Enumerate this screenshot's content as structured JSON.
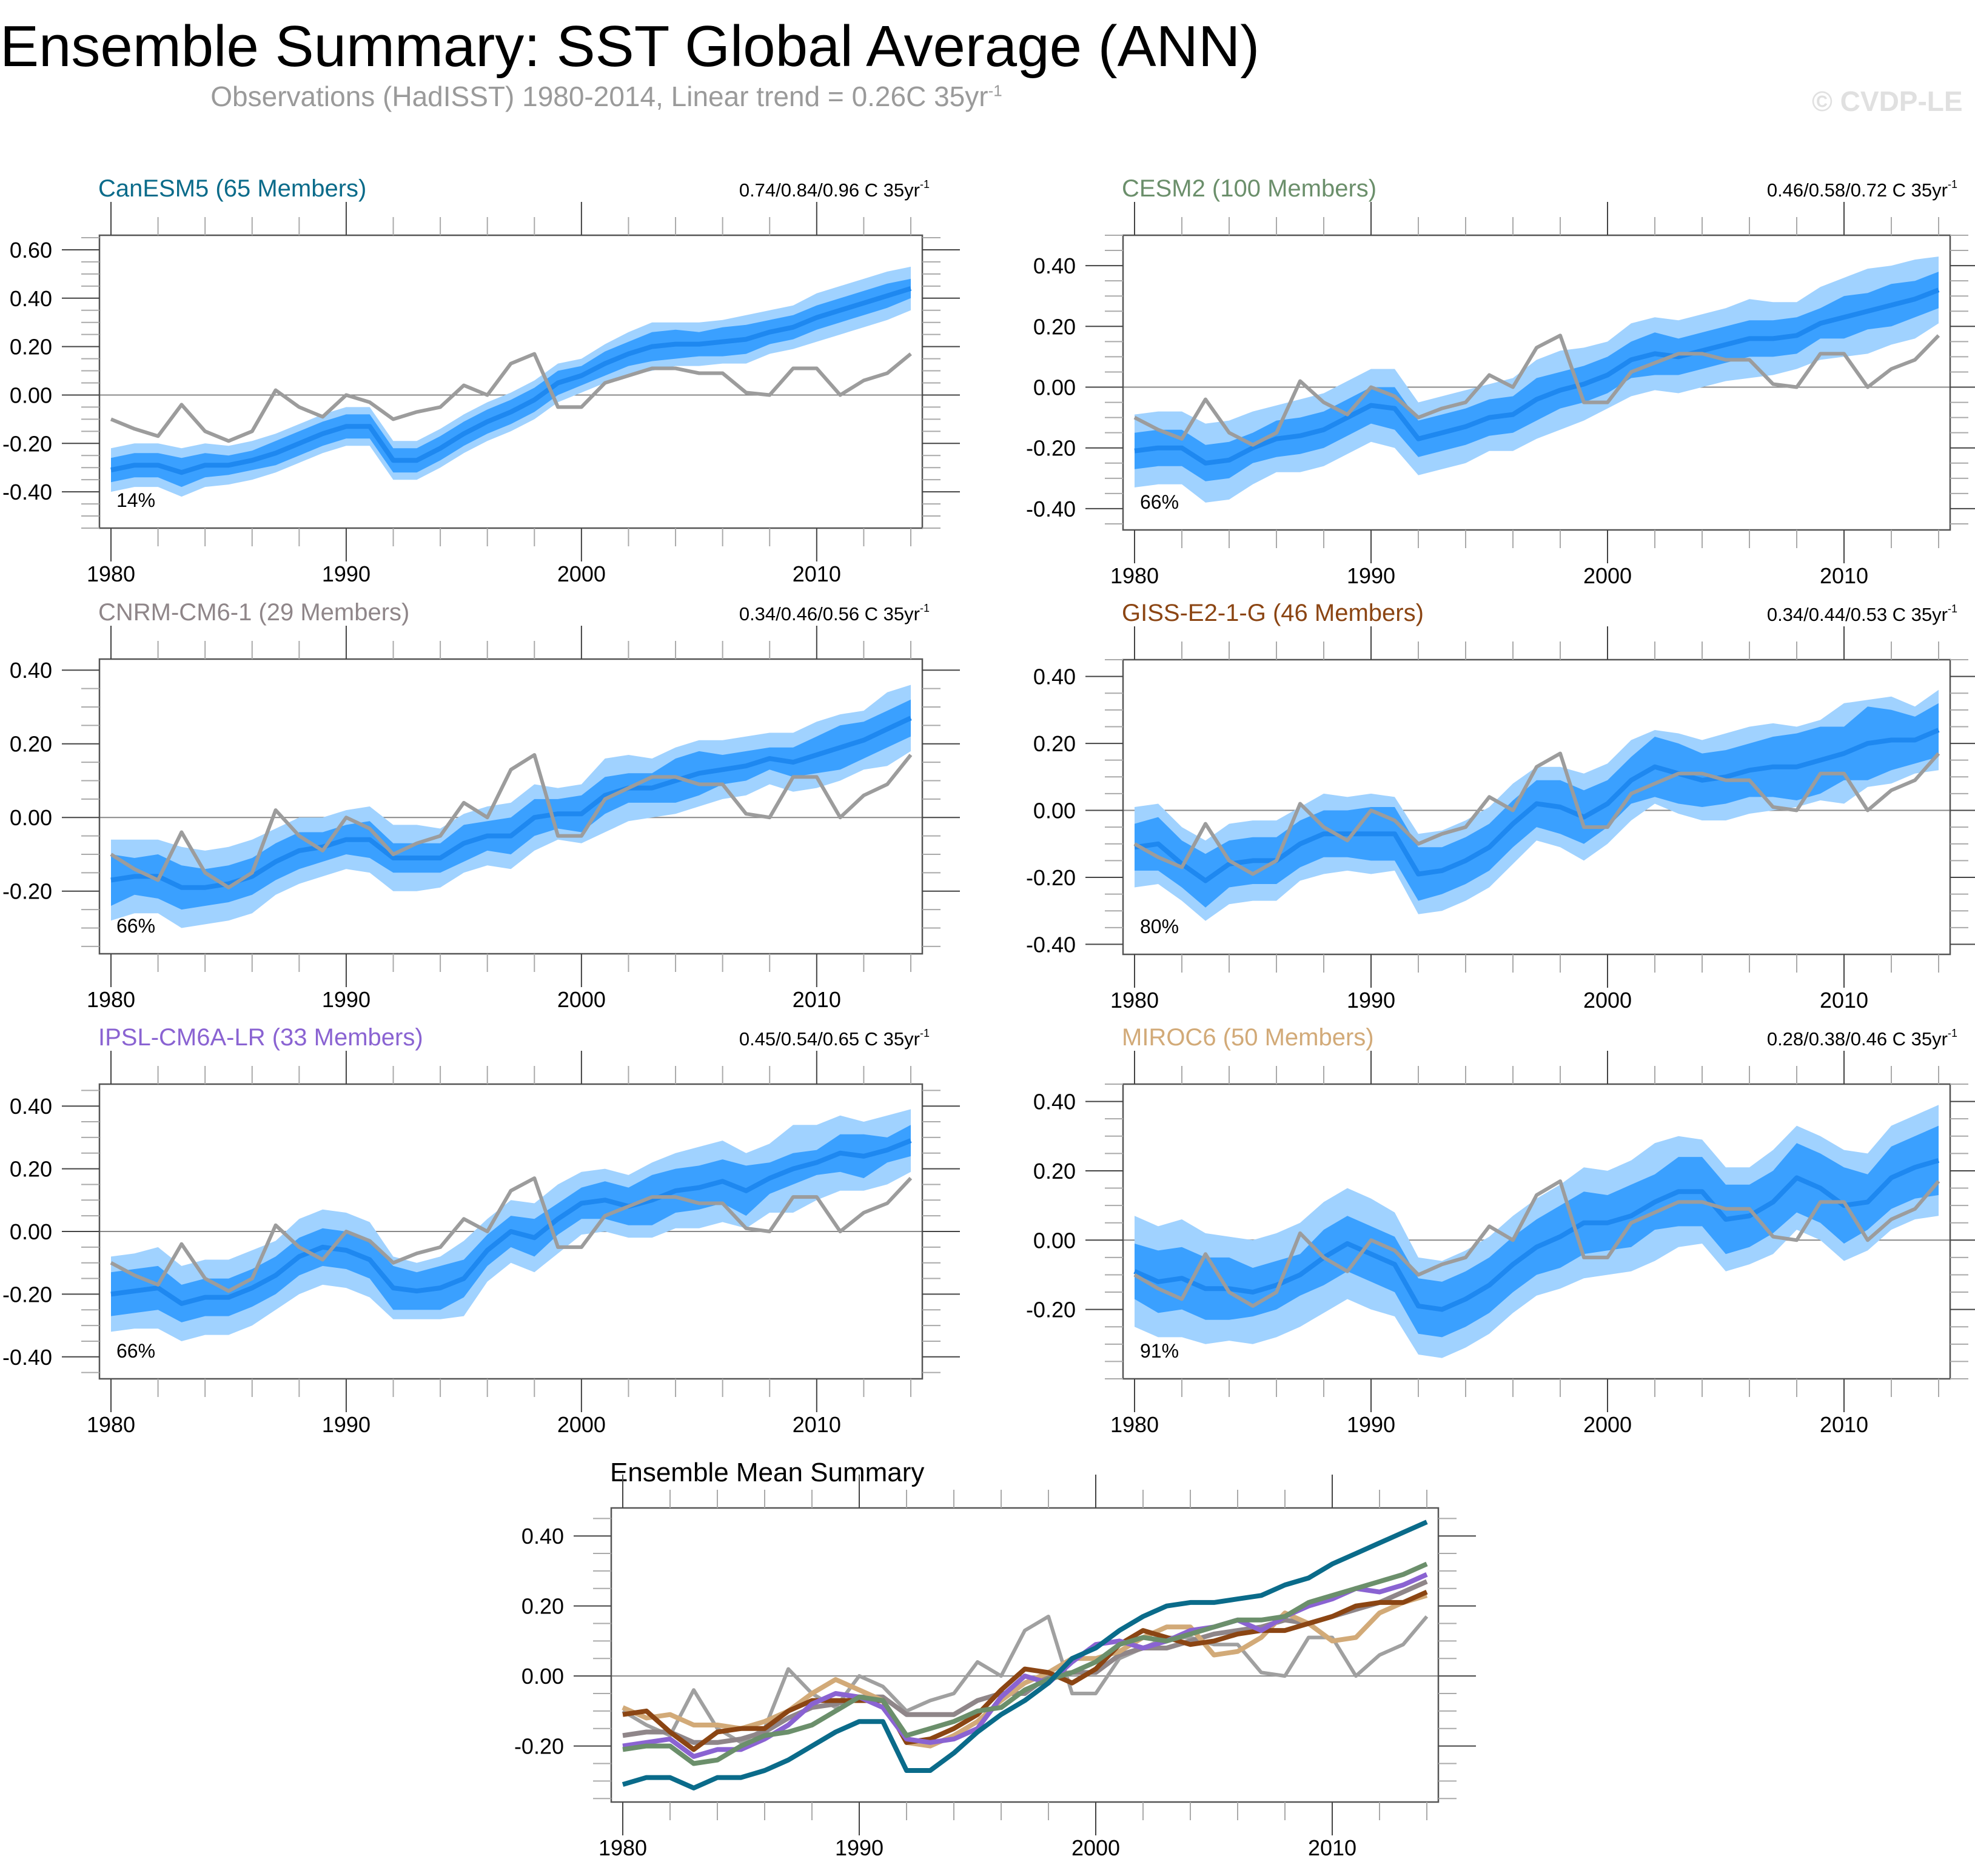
{
  "header": {
    "title": "Ensemble Summary: SST Global Average (ANN)",
    "subtitle": "Observations (HadISST) 1980-2014, Linear trend = 0.26C 35yr",
    "subtitle_superscript": "-1",
    "watermark": "© CVDP-LE"
  },
  "colors": {
    "band_outer": "#a0d2ff",
    "band_inner": "#3aa0ff",
    "ensemble_mean": "#1e88f0",
    "observations": "#9c9c9c",
    "zero_line": "#888888",
    "axis": "#555555"
  },
  "chart_data": [
    {
      "type": "area",
      "id": "canesm5",
      "title": "CanESM5 (65 Members)",
      "title_color": "#0a6b8a",
      "trend_label": "0.74/0.84/0.96 C 35yr",
      "trend_superscript": "-1",
      "percent_label": "14%",
      "ylim": [
        -0.55,
        0.66
      ],
      "yticks": [
        0.6,
        0.4,
        0.2,
        0.0,
        -0.2,
        -0.4
      ],
      "ytick_labels": [
        "0.60",
        "0.40",
        "0.20",
        "0.00",
        "-0.20",
        "-0.40"
      ],
      "xticks": [
        1980,
        1990,
        2000,
        2010
      ],
      "xtick_labels": [
        "1980",
        "1990",
        "2000",
        "2010"
      ],
      "mean": [
        -0.31,
        -0.29,
        -0.29,
        -0.32,
        -0.29,
        -0.29,
        -0.27,
        -0.24,
        -0.2,
        -0.16,
        -0.13,
        -0.13,
        -0.27,
        -0.27,
        -0.22,
        -0.16,
        -0.11,
        -0.07,
        -0.02,
        0.05,
        0.08,
        0.13,
        0.17,
        0.2,
        0.21,
        0.21,
        0.22,
        0.23,
        0.26,
        0.28,
        0.32,
        0.35,
        0.38,
        0.41,
        0.44
      ],
      "inner_halfwidth": [
        0.05,
        0.05,
        0.05,
        0.06,
        0.05,
        0.04,
        0.04,
        0.05,
        0.05,
        0.05,
        0.05,
        0.05,
        0.05,
        0.05,
        0.05,
        0.05,
        0.05,
        0.05,
        0.05,
        0.05,
        0.04,
        0.05,
        0.05,
        0.06,
        0.06,
        0.05,
        0.06,
        0.06,
        0.05,
        0.05,
        0.05,
        0.05,
        0.05,
        0.05,
        0.04
      ],
      "outer_halfwidth": [
        0.09,
        0.09,
        0.09,
        0.1,
        0.09,
        0.08,
        0.08,
        0.08,
        0.08,
        0.08,
        0.08,
        0.08,
        0.08,
        0.08,
        0.08,
        0.08,
        0.08,
        0.08,
        0.08,
        0.08,
        0.07,
        0.08,
        0.09,
        0.1,
        0.09,
        0.09,
        0.09,
        0.1,
        0.09,
        0.09,
        0.1,
        0.1,
        0.1,
        0.1,
        0.09
      ]
    },
    {
      "type": "area",
      "id": "cesm2",
      "title": "CESM2 (100 Members)",
      "title_color": "#6b8f6b",
      "trend_label": "0.46/0.58/0.72 C 35yr",
      "trend_superscript": "-1",
      "percent_label": "66%",
      "ylim": [
        -0.47,
        0.5
      ],
      "yticks": [
        0.4,
        0.2,
        0.0,
        -0.2,
        -0.4
      ],
      "ytick_labels": [
        "0.40",
        "0.20",
        "0.00",
        "-0.20",
        "-0.40"
      ],
      "xticks": [
        1980,
        1990,
        2000,
        2010
      ],
      "xtick_labels": [
        "1980",
        "1990",
        "2000",
        "2010"
      ],
      "mean": [
        -0.21,
        -0.2,
        -0.2,
        -0.25,
        -0.24,
        -0.2,
        -0.17,
        -0.16,
        -0.14,
        -0.1,
        -0.06,
        -0.07,
        -0.17,
        -0.15,
        -0.13,
        -0.1,
        -0.09,
        -0.04,
        -0.01,
        0.01,
        0.04,
        0.09,
        0.11,
        0.1,
        0.12,
        0.14,
        0.16,
        0.16,
        0.17,
        0.21,
        0.23,
        0.25,
        0.27,
        0.29,
        0.32
      ],
      "inner_halfwidth": [
        0.06,
        0.06,
        0.06,
        0.06,
        0.06,
        0.05,
        0.06,
        0.06,
        0.06,
        0.06,
        0.06,
        0.07,
        0.06,
        0.06,
        0.06,
        0.06,
        0.06,
        0.07,
        0.06,
        0.06,
        0.06,
        0.06,
        0.07,
        0.06,
        0.06,
        0.06,
        0.06,
        0.06,
        0.06,
        0.05,
        0.07,
        0.06,
        0.07,
        0.06,
        0.06
      ],
      "outer_halfwidth": [
        0.12,
        0.12,
        0.12,
        0.13,
        0.13,
        0.12,
        0.11,
        0.12,
        0.12,
        0.12,
        0.12,
        0.13,
        0.12,
        0.12,
        0.12,
        0.11,
        0.12,
        0.13,
        0.13,
        0.12,
        0.11,
        0.12,
        0.12,
        0.12,
        0.12,
        0.12,
        0.13,
        0.12,
        0.11,
        0.12,
        0.13,
        0.14,
        0.13,
        0.13,
        0.11
      ]
    },
    {
      "type": "area",
      "id": "cnrm-cm6-1",
      "title": "CNRM-CM6-1 (29 Members)",
      "title_color": "#8f8689",
      "trend_label": "0.34/0.46/0.56 C 35yr",
      "trend_superscript": "-1",
      "percent_label": "66%",
      "ylim": [
        -0.37,
        0.43
      ],
      "yticks": [
        0.4,
        0.2,
        0.0,
        -0.2
      ],
      "ytick_labels": [
        "0.40",
        "0.20",
        "0.00",
        "-0.20"
      ],
      "xticks": [
        1980,
        1990,
        2000,
        2010
      ],
      "xtick_labels": [
        "1980",
        "1990",
        "2000",
        "2010"
      ],
      "mean": [
        -0.17,
        -0.16,
        -0.16,
        -0.19,
        -0.19,
        -0.18,
        -0.16,
        -0.12,
        -0.09,
        -0.08,
        -0.06,
        -0.06,
        -0.11,
        -0.11,
        -0.11,
        -0.07,
        -0.05,
        -0.05,
        0.0,
        0.01,
        0.01,
        0.06,
        0.08,
        0.08,
        0.1,
        0.12,
        0.13,
        0.14,
        0.16,
        0.15,
        0.17,
        0.19,
        0.21,
        0.24,
        0.27
      ],
      "inner_halfwidth": [
        0.07,
        0.05,
        0.06,
        0.06,
        0.05,
        0.05,
        0.05,
        0.05,
        0.05,
        0.04,
        0.04,
        0.05,
        0.04,
        0.04,
        0.04,
        0.05,
        0.04,
        0.05,
        0.05,
        0.04,
        0.05,
        0.05,
        0.04,
        0.04,
        0.06,
        0.06,
        0.04,
        0.04,
        0.03,
        0.04,
        0.05,
        0.06,
        0.05,
        0.05,
        0.05
      ],
      "outer_halfwidth": [
        0.11,
        0.1,
        0.1,
        0.11,
        0.1,
        0.1,
        0.1,
        0.09,
        0.09,
        0.08,
        0.08,
        0.09,
        0.09,
        0.09,
        0.08,
        0.08,
        0.08,
        0.09,
        0.09,
        0.07,
        0.08,
        0.1,
        0.09,
        0.08,
        0.09,
        0.09,
        0.08,
        0.08,
        0.07,
        0.08,
        0.09,
        0.09,
        0.08,
        0.1,
        0.09
      ]
    },
    {
      "type": "area",
      "id": "giss-e2-1-g",
      "title": "GISS-E2-1-G (46 Members)",
      "title_color": "#8b4513",
      "trend_label": "0.34/0.44/0.53 C 35yr",
      "trend_superscript": "-1",
      "percent_label": "80%",
      "ylim": [
        -0.43,
        0.45
      ],
      "yticks": [
        0.4,
        0.2,
        0.0,
        -0.2,
        -0.4
      ],
      "ytick_labels": [
        "0.40",
        "0.20",
        "0.00",
        "-0.20",
        "-0.40"
      ],
      "xticks": [
        1980,
        1990,
        2000,
        2010
      ],
      "xtick_labels": [
        "1980",
        "1990",
        "2000",
        "2010"
      ],
      "mean": [
        -0.11,
        -0.1,
        -0.16,
        -0.21,
        -0.16,
        -0.15,
        -0.15,
        -0.1,
        -0.07,
        -0.07,
        -0.07,
        -0.07,
        -0.19,
        -0.18,
        -0.15,
        -0.11,
        -0.04,
        0.02,
        0.01,
        -0.02,
        0.02,
        0.09,
        0.13,
        0.11,
        0.09,
        0.1,
        0.12,
        0.13,
        0.13,
        0.15,
        0.17,
        0.2,
        0.21,
        0.21,
        0.24
      ],
      "inner_halfwidth": [
        0.07,
        0.08,
        0.07,
        0.08,
        0.07,
        0.07,
        0.07,
        0.07,
        0.07,
        0.07,
        0.08,
        0.08,
        0.08,
        0.07,
        0.07,
        0.07,
        0.07,
        0.07,
        0.08,
        0.08,
        0.07,
        0.07,
        0.09,
        0.09,
        0.08,
        0.08,
        0.08,
        0.09,
        0.1,
        0.1,
        0.08,
        0.11,
        0.09,
        0.07,
        0.08
      ],
      "outer_halfwidth": [
        0.12,
        0.12,
        0.11,
        0.12,
        0.12,
        0.12,
        0.12,
        0.11,
        0.12,
        0.11,
        0.12,
        0.11,
        0.12,
        0.12,
        0.12,
        0.12,
        0.12,
        0.11,
        0.12,
        0.13,
        0.12,
        0.12,
        0.11,
        0.12,
        0.12,
        0.13,
        0.13,
        0.13,
        0.12,
        0.12,
        0.15,
        0.13,
        0.13,
        0.1,
        0.12
      ]
    },
    {
      "type": "area",
      "id": "ipsl-cm6a-lr",
      "title": "IPSL-CM6A-LR (33 Members)",
      "title_color": "#8a63d2",
      "trend_label": "0.45/0.54/0.65 C 35yr",
      "trend_superscript": "-1",
      "percent_label": "66%",
      "ylim": [
        -0.47,
        0.47
      ],
      "yticks": [
        0.4,
        0.2,
        0.0,
        -0.2,
        -0.4
      ],
      "ytick_labels": [
        "0.40",
        "0.20",
        "0.00",
        "-0.20",
        "-0.40"
      ],
      "xticks": [
        1980,
        1990,
        2000,
        2010
      ],
      "xtick_labels": [
        "1980",
        "1990",
        "2000",
        "2010"
      ],
      "mean": [
        -0.2,
        -0.19,
        -0.18,
        -0.23,
        -0.21,
        -0.21,
        -0.18,
        -0.14,
        -0.08,
        -0.05,
        -0.06,
        -0.09,
        -0.18,
        -0.19,
        -0.18,
        -0.15,
        -0.06,
        0.0,
        -0.02,
        0.04,
        0.09,
        0.1,
        0.08,
        0.1,
        0.13,
        0.14,
        0.16,
        0.13,
        0.17,
        0.2,
        0.22,
        0.25,
        0.24,
        0.26,
        0.29
      ],
      "inner_halfwidth": [
        0.07,
        0.07,
        0.07,
        0.06,
        0.06,
        0.06,
        0.06,
        0.06,
        0.06,
        0.06,
        0.06,
        0.06,
        0.07,
        0.06,
        0.07,
        0.06,
        0.05,
        0.05,
        0.06,
        0.05,
        0.05,
        0.06,
        0.06,
        0.08,
        0.07,
        0.07,
        0.07,
        0.08,
        0.05,
        0.05,
        0.04,
        0.06,
        0.07,
        0.04,
        0.05
      ],
      "outer_halfwidth": [
        0.12,
        0.12,
        0.13,
        0.12,
        0.12,
        0.12,
        0.12,
        0.11,
        0.12,
        0.12,
        0.12,
        0.12,
        0.1,
        0.09,
        0.1,
        0.12,
        0.1,
        0.1,
        0.11,
        0.11,
        0.1,
        0.1,
        0.1,
        0.12,
        0.12,
        0.13,
        0.13,
        0.12,
        0.11,
        0.14,
        0.12,
        0.12,
        0.11,
        0.11,
        0.1
      ]
    },
    {
      "type": "area",
      "id": "miroc6",
      "title": "MIROC6 (50 Members)",
      "title_color": "#d2aa78",
      "trend_label": "0.28/0.38/0.46 C 35yr",
      "trend_superscript": "-1",
      "percent_label": "91%",
      "ylim": [
        -0.4,
        0.45
      ],
      "yticks": [
        0.4,
        0.2,
        0.0,
        -0.2
      ],
      "ytick_labels": [
        "0.40",
        "0.20",
        "0.00",
        "-0.20"
      ],
      "xticks": [
        1980,
        1990,
        2000,
        2010
      ],
      "xtick_labels": [
        "1980",
        "1990",
        "2000",
        "2010"
      ],
      "mean": [
        -0.09,
        -0.12,
        -0.11,
        -0.14,
        -0.14,
        -0.15,
        -0.13,
        -0.1,
        -0.05,
        -0.01,
        -0.04,
        -0.07,
        -0.19,
        -0.2,
        -0.17,
        -0.13,
        -0.07,
        -0.02,
        0.01,
        0.05,
        0.05,
        0.07,
        0.11,
        0.14,
        0.14,
        0.06,
        0.07,
        0.11,
        0.18,
        0.15,
        0.1,
        0.11,
        0.18,
        0.21,
        0.23
      ],
      "inner_halfwidth": [
        0.08,
        0.09,
        0.09,
        0.09,
        0.09,
        0.07,
        0.07,
        0.06,
        0.08,
        0.08,
        0.08,
        0.08,
        0.08,
        0.08,
        0.08,
        0.08,
        0.08,
        0.08,
        0.09,
        0.09,
        0.08,
        0.09,
        0.08,
        0.1,
        0.1,
        0.1,
        0.09,
        0.09,
        0.1,
        0.1,
        0.11,
        0.08,
        0.09,
        0.09,
        0.1
      ],
      "outer_halfwidth": [
        0.16,
        0.16,
        0.17,
        0.16,
        0.15,
        0.15,
        0.15,
        0.15,
        0.16,
        0.16,
        0.16,
        0.15,
        0.14,
        0.14,
        0.14,
        0.14,
        0.14,
        0.14,
        0.15,
        0.16,
        0.15,
        0.16,
        0.17,
        0.16,
        0.15,
        0.15,
        0.14,
        0.15,
        0.15,
        0.15,
        0.16,
        0.14,
        0.15,
        0.15,
        0.16
      ]
    },
    {
      "type": "line",
      "id": "ensemble-mean-summary",
      "title": "Ensemble Mean Summary",
      "title_color": "#000000",
      "ylim": [
        -0.36,
        0.48
      ],
      "yticks": [
        0.4,
        0.2,
        0.0,
        -0.2
      ],
      "ytick_labels": [
        "0.40",
        "0.20",
        "0.00",
        "-0.20"
      ],
      "xticks": [
        1980,
        1990,
        2000,
        2010
      ],
      "xtick_labels": [
        "1980",
        "1990",
        "2000",
        "2010"
      ],
      "series": [
        {
          "name": "Observations (HadISST)",
          "color": "#a0a0a0",
          "ref": "observations"
        },
        {
          "name": "CNRM-CM6-1",
          "color": "#8f8689",
          "ref": "cnrm-cm6-1"
        },
        {
          "name": "MIROC6",
          "color": "#d2aa78",
          "ref": "miroc6"
        },
        {
          "name": "GISS-E2-1-G",
          "color": "#8b4513",
          "ref": "giss-e2-1-g"
        },
        {
          "name": "IPSL-CM6A-LR",
          "color": "#8a63d2",
          "ref": "ipsl-cm6a-lr"
        },
        {
          "name": "CESM2",
          "color": "#6b8f6b",
          "ref": "cesm2"
        },
        {
          "name": "CanESM5",
          "color": "#0a6b8a",
          "ref": "canesm5"
        }
      ]
    }
  ],
  "x_years": [
    1980,
    1981,
    1982,
    1983,
    1984,
    1985,
    1986,
    1987,
    1988,
    1989,
    1990,
    1991,
    1992,
    1993,
    1994,
    1995,
    1996,
    1997,
    1998,
    1999,
    2000,
    2001,
    2002,
    2003,
    2004,
    2005,
    2006,
    2007,
    2008,
    2009,
    2010,
    2011,
    2012,
    2013,
    2014
  ],
  "observations": [
    -0.1,
    -0.14,
    -0.17,
    -0.04,
    -0.15,
    -0.19,
    -0.15,
    0.02,
    -0.05,
    -0.09,
    0.0,
    -0.03,
    -0.1,
    -0.07,
    -0.05,
    0.04,
    0.0,
    0.13,
    0.17,
    -0.05,
    -0.05,
    0.05,
    0.08,
    0.11,
    0.11,
    0.09,
    0.09,
    0.01,
    0.0,
    0.11,
    0.11,
    0.0,
    0.06,
    0.09,
    0.17
  ]
}
